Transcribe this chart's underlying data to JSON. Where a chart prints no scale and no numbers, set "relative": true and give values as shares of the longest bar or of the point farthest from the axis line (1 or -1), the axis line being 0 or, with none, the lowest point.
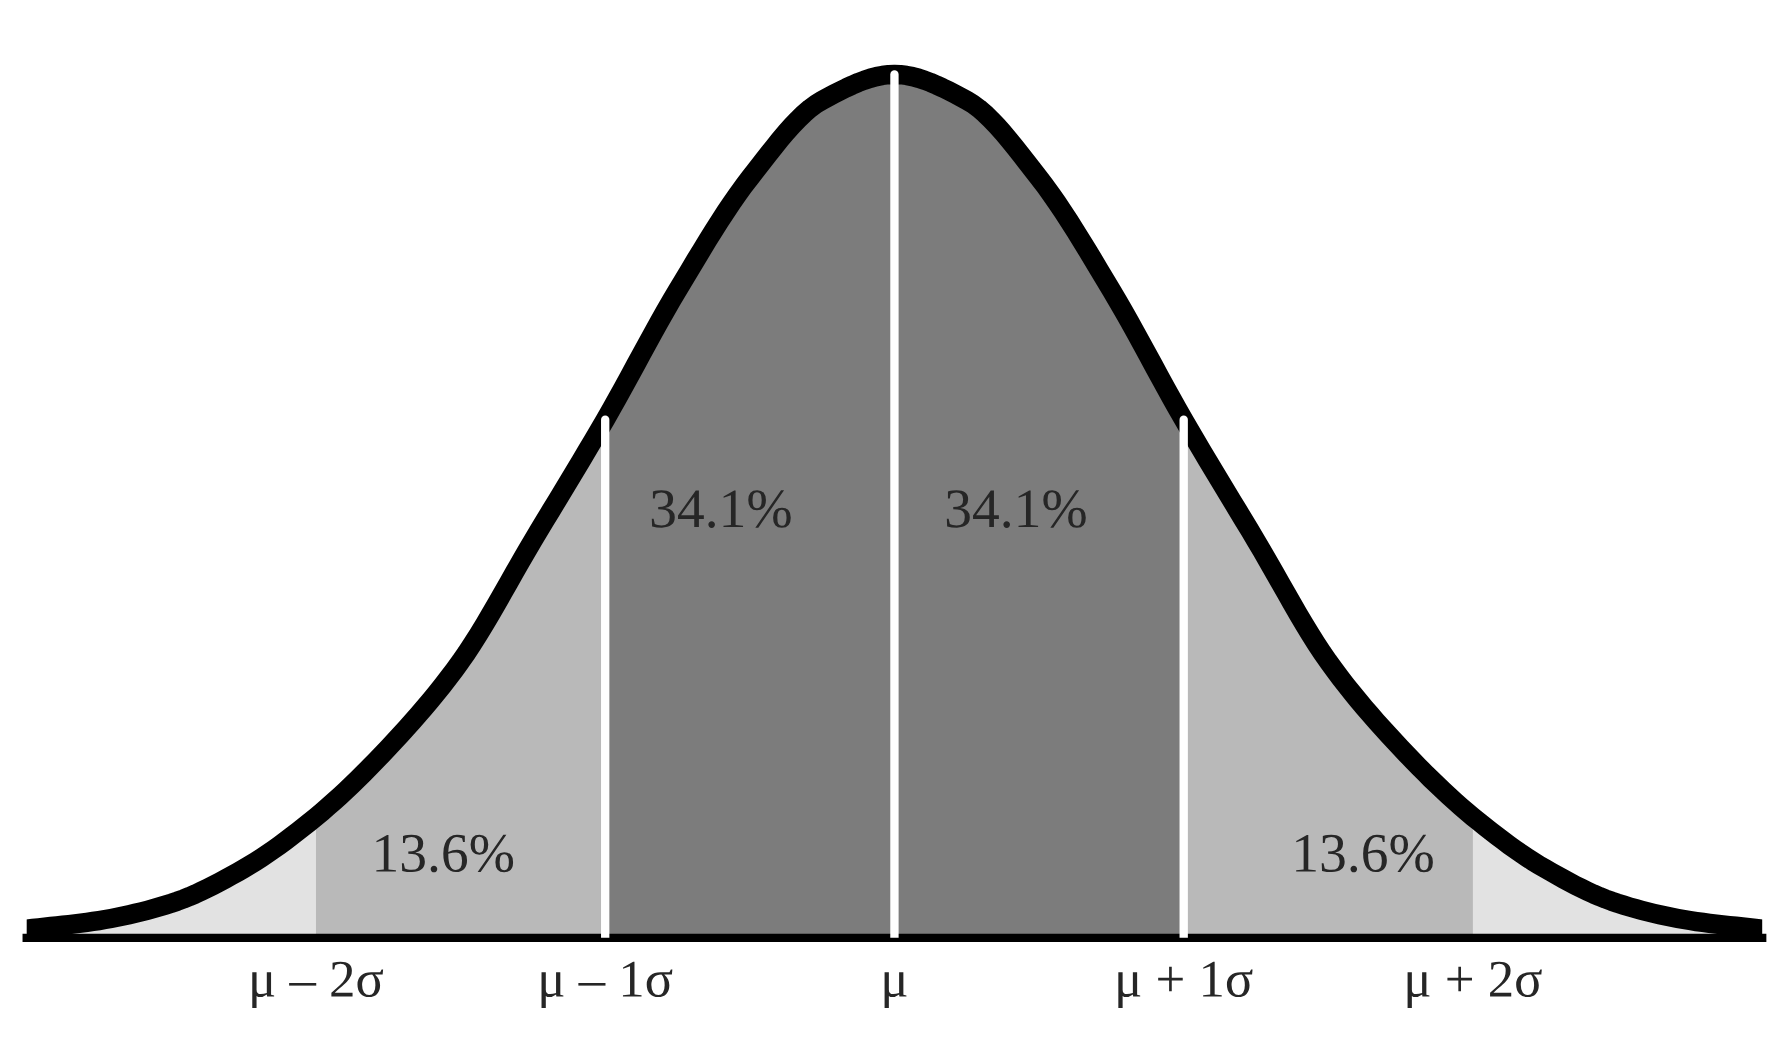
{
  "chart_data": {
    "type": "area",
    "relative": true,
    "xlim": [
      -3,
      3
    ],
    "xticks": [
      {
        "value": -2,
        "label": "μ – 2σ"
      },
      {
        "value": -1,
        "label": "μ – 1σ"
      },
      {
        "value": 0,
        "label": "μ"
      },
      {
        "value": 1,
        "label": "μ + 1σ"
      },
      {
        "value": 2,
        "label": "μ + 2σ"
      }
    ],
    "tick_labels": "x",
    "series": [
      {
        "color": "#e2e2e2",
        "x": [
          -3,
          -2.75,
          -2.5,
          -2.25,
          -2
        ],
        "values": [
          0.01,
          0.02,
          0.04,
          0.08,
          0.14
        ]
      },
      {
        "color": "#b9b9b9",
        "x": [
          -2,
          -1.75,
          -1.5,
          -1.25,
          -1
        ],
        "values": [
          0.14,
          0.22,
          0.32,
          0.46,
          0.6
        ]
      },
      {
        "color": "#7c7c7c",
        "x": [
          -1,
          -0.75,
          -0.5,
          -0.25,
          0
        ],
        "values": [
          0.6,
          0.75,
          0.88,
          0.97,
          1
        ]
      },
      {
        "color": "#7c7c7c",
        "x": [
          0,
          0.25,
          0.5,
          0.75,
          1
        ],
        "values": [
          1,
          0.97,
          0.88,
          0.75,
          0.6
        ]
      },
      {
        "color": "#b9b9b9",
        "x": [
          1,
          1.25,
          1.5,
          1.75,
          2
        ],
        "values": [
          0.6,
          0.46,
          0.32,
          0.22,
          0.14
        ]
      },
      {
        "color": "#e2e2e2",
        "x": [
          2,
          2.25,
          2.5,
          2.75,
          3
        ],
        "values": [
          0.14,
          0.08,
          0.04,
          0.02,
          0.01
        ]
      },
      {
        "type": "line",
        "color": "#000000",
        "x": [
          -3,
          -2.75,
          -2.5,
          -2.25,
          -2,
          -1.75,
          -1.5,
          -1.25,
          -1,
          -0.75,
          -0.5,
          -0.25,
          0,
          0.25,
          0.5,
          0.75,
          1,
          1.25,
          1.5,
          1.75,
          2,
          2.25,
          2.5,
          2.75,
          3
        ],
        "values": [
          0.01,
          0.02,
          0.04,
          0.08,
          0.14,
          0.22,
          0.32,
          0.46,
          0.6,
          0.75,
          0.88,
          0.97,
          1,
          0.97,
          0.88,
          0.75,
          0.6,
          0.46,
          0.32,
          0.22,
          0.14,
          0.08,
          0.04,
          0.02,
          0.01
        ]
      }
    ],
    "ref_lines": [
      {
        "axis": "x",
        "value": -1,
        "color": "#ffffff"
      },
      {
        "axis": "x",
        "value": 0,
        "color": "#ffffff"
      },
      {
        "axis": "x",
        "value": 1,
        "color": "#ffffff"
      }
    ],
    "annotations": [
      "34.1%",
      "34.1%",
      "13.6%",
      "13.6%"
    ]
  }
}
